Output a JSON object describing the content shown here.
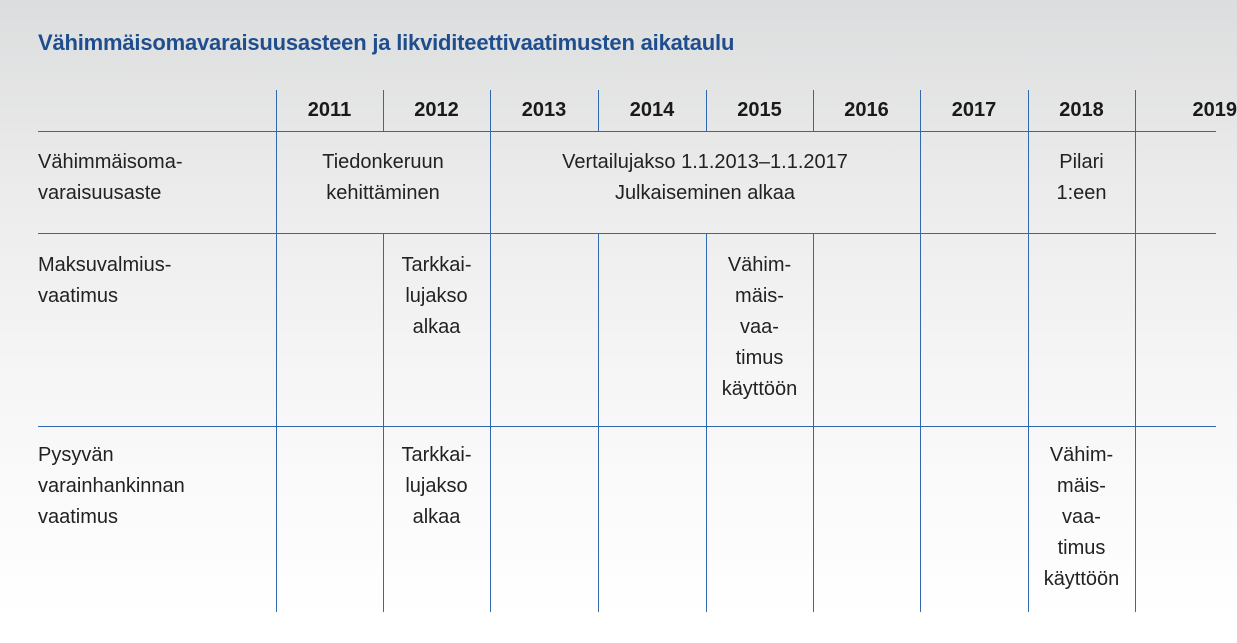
{
  "title": "Vähimmäisomavaraisuusasteen ja likviditeettivaatimusten aikataulu",
  "years": [
    "2011",
    "2012",
    "2013",
    "2014",
    "2015",
    "2016",
    "2017",
    "2018",
    "2019"
  ],
  "rows": [
    {
      "label": [
        "Vähimmäisoma-",
        "varaisuusaste"
      ],
      "cells": [
        {
          "lines": [
            "Tiedonkeruun",
            "kehittäminen"
          ]
        },
        {
          "lines": [
            "Vertailujakso 1.1.2013–1.1.2017",
            "Julkaiseminen alkaa"
          ]
        },
        {
          "lines": [
            "Pilari",
            "1:een"
          ]
        }
      ]
    },
    {
      "label": [
        "Maksuvalmius-",
        "vaatimus"
      ],
      "cells": [
        {
          "lines": [
            "Tarkkai-",
            "lujakso",
            "alkaa"
          ]
        },
        {
          "lines": [
            "Vähim-",
            "mäis-",
            "vaa-",
            "timus",
            "käyttöön"
          ]
        }
      ]
    },
    {
      "label": [
        "Pysyvän",
        "varainhankinnan",
        "vaatimus"
      ],
      "cells": [
        {
          "lines": [
            "Tarkkai-",
            "lujakso",
            "alkaa"
          ]
        },
        {
          "lines": [
            "Vähim-",
            "mäis-",
            "vaa-",
            "timus",
            "käyttöön"
          ]
        }
      ]
    }
  ]
}
